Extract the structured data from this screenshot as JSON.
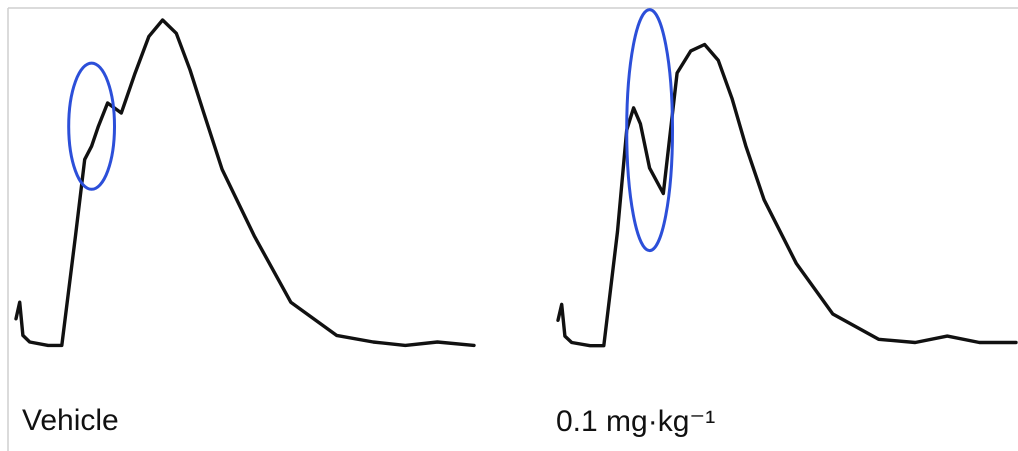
{
  "chart_data": {
    "type": "line",
    "colors": {
      "trace": "#111111",
      "highlight": "#2c4fd9",
      "frame": "#cfcfcf"
    },
    "panels": [
      {
        "label": "Vehicle",
        "series": [
          {
            "x": [
              0,
              0.8,
              1.5,
              3,
              7,
              10,
              13,
              15,
              16.5,
              18,
              20,
              23,
              26,
              29,
              32,
              35,
              38,
              41,
              45,
              52,
              60,
              70,
              78,
              85,
              92,
              100
            ],
            "y": [
              0.1,
              0.15,
              0.05,
              0.03,
              0.02,
              0.02,
              0.35,
              0.58,
              0.62,
              0.68,
              0.75,
              0.72,
              0.84,
              0.95,
              1.0,
              0.96,
              0.85,
              0.72,
              0.55,
              0.35,
              0.15,
              0.05,
              0.03,
              0.02,
              0.03,
              0.02
            ]
          }
        ],
        "highlight": {
          "shape": "ellipse",
          "cx": 16.5,
          "cy": 0.68,
          "rx": 5,
          "ry": 0.19
        }
      },
      {
        "label": "0.1 mg·kg⁻¹",
        "series": [
          {
            "x": [
              0,
              0.8,
              1.5,
              3,
              7,
              10,
              13,
              15,
              16.5,
              18,
              20,
              23,
              26,
              29,
              32,
              35,
              38,
              41,
              45,
              52,
              60,
              70,
              78,
              85,
              92,
              100
            ],
            "y": [
              0.1,
              0.15,
              0.05,
              0.03,
              0.02,
              0.02,
              0.38,
              0.7,
              0.77,
              0.72,
              0.58,
              0.5,
              0.88,
              0.95,
              0.97,
              0.92,
              0.8,
              0.65,
              0.48,
              0.28,
              0.12,
              0.04,
              0.03,
              0.05,
              0.03,
              0.03
            ]
          }
        ],
        "highlight": {
          "shape": "ellipse",
          "cx": 20,
          "cy": 0.7,
          "rx": 5,
          "ry": 0.38
        }
      }
    ]
  }
}
